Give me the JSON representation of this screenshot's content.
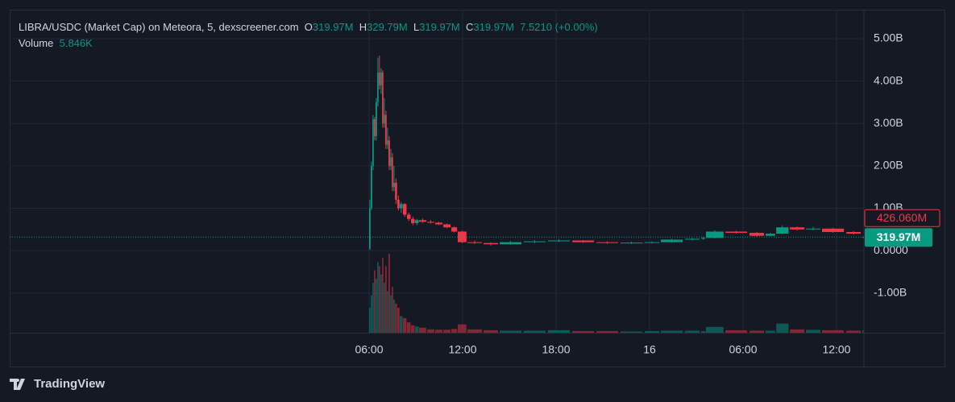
{
  "header": {
    "symbol": "LIBRA/USDC (Market Cap) on Meteora, 5, dexscreener.com",
    "o_label": "O",
    "o_value": "319.97M",
    "h_label": "H",
    "h_value": "329.79M",
    "l_label": "L",
    "l_value": "319.97M",
    "c_label": "C",
    "c_value": "319.97M",
    "change": "7.5210 (+0.00%)",
    "volume_label": "Volume",
    "volume_value": "5.846K"
  },
  "brand": "TradingView",
  "chart_data": {
    "type": "candlestick",
    "up_color": "#089981",
    "down_color": "#f23645",
    "grid": true,
    "x": [
      6.0,
      6.1,
      6.21,
      6.31,
      6.41,
      6.52,
      6.62,
      6.72,
      6.83,
      6.93,
      7.03,
      7.14,
      7.24,
      7.35,
      7.45,
      7.55,
      7.66,
      7.81,
      7.97,
      8.17,
      8.43,
      8.69,
      8.95,
      9.21,
      9.72,
      10.24,
      10.76,
      11.28,
      11.69,
      12.31,
      13.35,
      14.38,
      15.93,
      17.48,
      19.04,
      20.59,
      22.14,
      23.69,
      24.73,
      26.28,
      27.31,
      27.62,
      28.87,
      30.42,
      31.45,
      32.13,
      33.01,
      34.04,
      35.07,
      36.63,
      37.66
    ],
    "open": [
      0.05,
      1.0,
      2.0,
      3.1,
      2.7,
      3.5,
      4.2,
      3.9,
      4.2,
      3.0,
      3.2,
      2.5,
      2.6,
      2.0,
      2.2,
      1.5,
      1.6,
      1.2,
      1.0,
      1.1,
      0.85,
      0.75,
      0.65,
      0.72,
      0.68,
      0.66,
      0.62,
      0.55,
      0.45,
      0.2,
      0.18,
      0.15,
      0.2,
      0.22,
      0.24,
      0.2,
      0.18,
      0.19,
      0.2,
      0.26,
      0.28,
      0.3,
      0.45,
      0.42,
      0.35,
      0.4,
      0.55,
      0.5,
      0.52,
      0.44,
      0.31997
    ],
    "high": [
      1.2,
      2.1,
      3.2,
      3.15,
      3.6,
      4.55,
      4.6,
      4.3,
      4.25,
      3.6,
      3.3,
      2.9,
      2.7,
      2.4,
      2.3,
      2.0,
      1.7,
      1.3,
      1.15,
      1.12,
      0.9,
      0.8,
      0.75,
      0.76,
      0.72,
      0.68,
      0.64,
      0.57,
      0.47,
      0.24,
      0.2,
      0.23,
      0.25,
      0.27,
      0.25,
      0.22,
      0.21,
      0.22,
      0.28,
      0.3,
      0.32,
      0.48,
      0.47,
      0.44,
      0.42,
      0.6,
      0.57,
      0.56,
      0.54,
      0.46,
      0.32979
    ],
    "low": [
      0.02,
      0.95,
      1.9,
      2.6,
      2.6,
      3.4,
      3.8,
      3.7,
      2.9,
      2.9,
      2.4,
      2.4,
      1.9,
      1.9,
      1.4,
      1.4,
      1.1,
      0.95,
      0.9,
      0.8,
      0.7,
      0.6,
      0.6,
      0.66,
      0.64,
      0.6,
      0.53,
      0.43,
      0.18,
      0.16,
      0.12,
      0.14,
      0.18,
      0.2,
      0.18,
      0.16,
      0.16,
      0.17,
      0.19,
      0.24,
      0.26,
      0.29,
      0.4,
      0.33,
      0.34,
      0.39,
      0.48,
      0.48,
      0.42,
      0.38,
      0.31997
    ],
    "close": [
      1.0,
      2.0,
      3.1,
      2.7,
      3.5,
      4.2,
      3.9,
      4.2,
      3.0,
      3.2,
      2.5,
      2.6,
      2.0,
      2.2,
      1.5,
      1.6,
      1.2,
      1.0,
      1.1,
      0.85,
      0.75,
      0.65,
      0.72,
      0.68,
      0.66,
      0.62,
      0.55,
      0.45,
      0.2,
      0.18,
      0.15,
      0.2,
      0.22,
      0.24,
      0.2,
      0.18,
      0.19,
      0.2,
      0.26,
      0.28,
      0.3,
      0.45,
      0.42,
      0.35,
      0.4,
      0.55,
      0.5,
      0.52,
      0.44,
      0.4,
      0.31997
    ],
    "volume": [
      60000,
      90000,
      120000,
      150000,
      130000,
      170000,
      160000,
      140000,
      180000,
      120000,
      160000,
      100000,
      190000,
      90000,
      110000,
      80000,
      70000,
      60000,
      40000,
      35000,
      25000,
      18000,
      15000,
      12000,
      8000,
      7000,
      7000,
      9000,
      20000,
      8000,
      6000,
      5000,
      5000,
      6000,
      4000,
      4000,
      3000,
      4000,
      5000,
      5000,
      4000,
      14000,
      6000,
      5000,
      5000,
      22000,
      8000,
      7000,
      6000,
      5000,
      5846
    ],
    "xlim": [
      -17.07,
      37.76
    ],
    "xticks": [
      {
        "value": 6,
        "label": "06:00"
      },
      {
        "value": 12,
        "label": "12:00"
      },
      {
        "value": 18,
        "label": "18:00"
      },
      {
        "value": 24,
        "label": "16"
      },
      {
        "value": 30,
        "label": "06:00"
      },
      {
        "value": 36,
        "label": "12:00"
      }
    ],
    "ylim": [
      -1.935,
      5.683
    ],
    "yticks": [
      {
        "value": -1,
        "label": "-1.00B"
      },
      {
        "value": 0,
        "label": "0.0000"
      },
      {
        "value": 1,
        "label": "1.00B"
      },
      {
        "value": 2,
        "label": "2.00B"
      },
      {
        "value": 3,
        "label": "3.00B"
      },
      {
        "value": 4,
        "label": "4.00B"
      },
      {
        "value": 5,
        "label": "5.00B"
      }
    ],
    "last_price": {
      "value": 0.31997,
      "label": "319.97M"
    },
    "marker_price": {
      "value": 0.42606,
      "label": "426.060M"
    }
  }
}
